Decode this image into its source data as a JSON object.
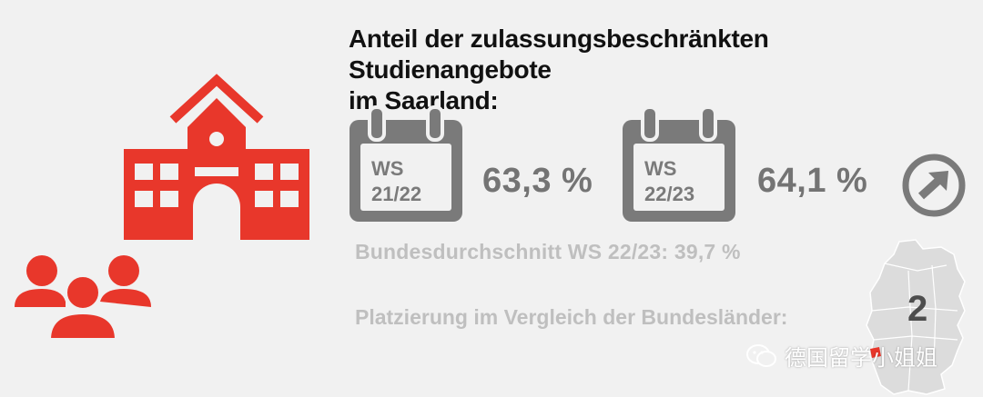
{
  "title_line1": "Anteil der zulassungsbeschränkten Studienangebote",
  "title_line2": "im Saarland:",
  "semesters": [
    {
      "label_top": "WS",
      "label_bottom": "21/22",
      "value": "63,3 %"
    },
    {
      "label_top": "WS",
      "label_bottom": "22/23",
      "value": "64,1 %"
    }
  ],
  "national_average": "Bundesdurchschnitt WS 22/23: 39,7 %",
  "ranking_label": "Platzierung im Vergleich der Bundesländer:",
  "ranking_value": "2",
  "watermark": "德国留学小姐姐",
  "icons": {
    "building": "university-building-icon",
    "people": "people-group-icon",
    "calendar": "calendar-icon",
    "arrow": "arrow-circle-icon",
    "map": "germany-map-icon",
    "wechat": "wechat-icon"
  },
  "colors": {
    "accent_red": "#e8372b",
    "gray_dark": "#747474",
    "gray_light": "#bfbfbf"
  }
}
